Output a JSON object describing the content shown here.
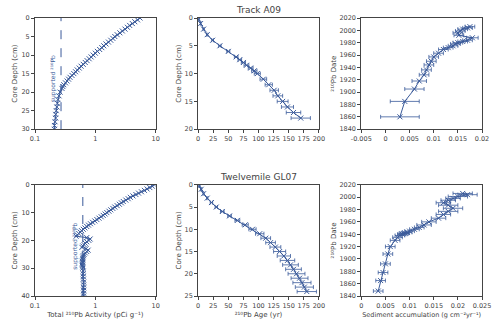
{
  "chart_data": [
    {
      "type": "line",
      "log": "x",
      "grid": false,
      "color": "#3a5a9a",
      "marker": "x",
      "line_style": "solid",
      "x": [
        5.5,
        5.0,
        4.5,
        4.1,
        3.7,
        3.4,
        3.1,
        2.8,
        2.55,
        2.3,
        2.1,
        1.95,
        1.8,
        1.65,
        1.5,
        1.38,
        1.28,
        1.18,
        1.08,
        1.0,
        0.92,
        0.85,
        0.79,
        0.73,
        0.68,
        0.63,
        0.58,
        0.54,
        0.5,
        0.47,
        0.44,
        0.41,
        0.38,
        0.36,
        0.34,
        0.32,
        0.3,
        0.29,
        0.28,
        0.26,
        0.25,
        0.24,
        0.235,
        0.23,
        0.225,
        0.22,
        0.22,
        0.215,
        0.21,
        0.21
      ],
      "y": [
        0,
        0.5,
        1.0,
        1.5,
        2.0,
        2.5,
        3.0,
        3.5,
        4.0,
        4.5,
        5.0,
        5.5,
        6.0,
        6.5,
        7.0,
        7.5,
        8.0,
        8.5,
        9.0,
        9.5,
        10.0,
        10.5,
        11.0,
        11.5,
        12.0,
        12.5,
        13.0,
        13.5,
        14.0,
        14.5,
        15.0,
        15.5,
        16.0,
        16.5,
        17.0,
        17.5,
        18.0,
        18.5,
        19.0,
        20.0,
        21.0,
        22.0,
        23.0,
        24.0,
        25.0,
        26.0,
        27.0,
        28.0,
        29.0,
        30.0
      ],
      "xlim": [
        0.1,
        10
      ],
      "ylim": [
        30,
        0
      ],
      "xticks": [
        0.1,
        1,
        10
      ],
      "yticks": [
        0,
        5,
        10,
        15,
        20,
        25,
        30
      ],
      "ylabel": "Core Depth (cm)",
      "supported": {
        "value": 0.27,
        "label": "supported ²¹⁰Pb",
        "line_style": "dashed"
      }
    },
    {
      "type": "line",
      "title": "Track A09",
      "grid": false,
      "color": "#3a5a9a",
      "marker": "x",
      "line_style": "solid",
      "x": [
        1,
        4,
        9,
        15,
        24,
        36,
        50,
        63,
        69,
        75,
        80,
        87,
        93,
        98,
        108,
        117,
        126,
        132,
        140,
        148,
        158,
        170
      ],
      "xerr": [
        0.5,
        0.5,
        1,
        1,
        1.5,
        2,
        2.5,
        3,
        3,
        3.5,
        4,
        4,
        4.5,
        5,
        5.5,
        6,
        7,
        8,
        9,
        10,
        12,
        16
      ],
      "y": [
        0.25,
        1.0,
        2.0,
        3.0,
        4.0,
        5.0,
        6.0,
        7.0,
        7.5,
        8.0,
        8.5,
        9.0,
        9.5,
        10.0,
        11.0,
        12.0,
        13.0,
        14.0,
        15.0,
        16.0,
        17.0,
        18.0
      ],
      "xlim": [
        0,
        200
      ],
      "ylim": [
        20,
        0
      ],
      "xticks": [
        0,
        25,
        50,
        75,
        100,
        125,
        150,
        175,
        200
      ],
      "yticks": [
        0,
        5,
        10,
        15,
        20
      ],
      "ylabel": "Core Depth (cm)"
    },
    {
      "type": "line",
      "grid": false,
      "color": "#3a5a9a",
      "marker": "x",
      "line_style": "solid",
      "x": [
        0.0175,
        0.017,
        0.016,
        0.0155,
        0.015,
        0.0152,
        0.018,
        0.017,
        0.016,
        0.015,
        0.0145,
        0.014,
        0.013,
        0.012,
        0.011,
        0.01,
        0.0095,
        0.009,
        0.0085,
        0.008,
        0.007,
        0.006,
        0.004,
        0.003
      ],
      "xerr": [
        0.001,
        0.001,
        0.001,
        0.001,
        0.001,
        0.001,
        0.0012,
        0.001,
        0.001,
        0.001,
        0.001,
        0.001,
        0.001,
        0.001,
        0.001,
        0.001,
        0.001,
        0.001,
        0.001,
        0.001,
        0.0015,
        0.002,
        0.003,
        0.004
      ],
      "y": [
        2006,
        2004,
        2002,
        1999,
        1996,
        1992,
        1988,
        1984,
        1982,
        1980,
        1978,
        1975,
        1972,
        1969,
        1963,
        1957,
        1950,
        1944,
        1936,
        1928,
        1918,
        1905,
        1885,
        1860
      ],
      "xlim": [
        -0.005,
        0.02
      ],
      "ylim": [
        1840,
        2020
      ],
      "xticks": [
        -0.005,
        0,
        0.005,
        0.01,
        0.015,
        0.02
      ],
      "yticks": [
        1840,
        1860,
        1880,
        1900,
        1920,
        1940,
        1960,
        1980,
        2000,
        2020
      ],
      "ylabel": "²¹⁰Pb Date"
    },
    {
      "type": "line",
      "log": "x",
      "grid": false,
      "color": "#3a5a9a",
      "marker": "x",
      "line_style": "solid",
      "x": [
        9.5,
        8.8,
        8.0,
        7.2,
        6.5,
        5.8,
        5.2,
        4.7,
        4.2,
        3.8,
        3.5,
        3.2,
        2.9,
        2.7,
        2.5,
        2.3,
        2.1,
        1.95,
        1.8,
        1.68,
        1.55,
        1.45,
        1.35,
        1.25,
        1.15,
        1.06,
        0.98,
        0.9,
        0.83,
        0.77,
        0.72,
        0.67,
        0.63,
        0.59,
        0.56,
        0.53,
        0.5,
        0.48,
        0.72,
        0.82,
        0.78,
        0.72,
        0.68,
        0.65,
        0.62,
        0.6,
        0.7,
        0.76,
        0.72,
        0.68,
        0.65,
        0.63,
        0.62,
        0.62,
        0.62,
        0.61,
        0.61,
        0.61,
        0.61,
        0.62,
        0.62,
        0.63,
        0.63,
        0.63,
        0.63,
        0.64,
        0.64,
        0.64,
        0.64,
        0.64,
        0.64
      ],
      "y": [
        0,
        0.5,
        1.0,
        1.5,
        2.0,
        2.5,
        3.0,
        3.5,
        4.0,
        4.5,
        5.0,
        5.5,
        6.0,
        6.5,
        7.0,
        7.5,
        8.0,
        8.5,
        9.0,
        9.5,
        10.0,
        10.5,
        11.0,
        11.5,
        12.0,
        12.5,
        13.0,
        13.5,
        14.0,
        14.5,
        15.0,
        15.5,
        16.0,
        16.5,
        17.0,
        17.5,
        18.0,
        18.5,
        19.0,
        19.5,
        20.0,
        20.5,
        21.0,
        21.5,
        22.0,
        22.5,
        23.0,
        23.5,
        24.0,
        24.5,
        25.0,
        25.5,
        26.0,
        26.5,
        27.0,
        27.5,
        28.0,
        28.5,
        29.0,
        29.5,
        30.0,
        31.0,
        32.0,
        33.0,
        34.0,
        35.0,
        36.0,
        37.0,
        38.0,
        39.0,
        40.0
      ],
      "xlim": [
        0.1,
        10
      ],
      "ylim": [
        40,
        0
      ],
      "xticks": [
        0.1,
        1,
        10
      ],
      "yticks": [
        0,
        10,
        20,
        30,
        40
      ],
      "xlabel": "Total ²¹⁰Pb Activity (pCi g⁻¹)",
      "ylabel": "Core Depth (cm)",
      "supported": {
        "value": 0.62,
        "label": "supported ²¹⁰Pb",
        "line_style": "dashed"
      }
    },
    {
      "type": "line",
      "title": "Twelvemile GL07",
      "grid": false,
      "color": "#3a5a9a",
      "marker": "x",
      "line_style": "solid",
      "x": [
        2,
        5,
        9,
        15,
        22,
        30,
        40,
        52,
        65,
        78,
        90,
        102,
        112,
        120,
        128,
        135,
        142,
        148,
        153,
        158,
        163,
        168,
        172,
        176,
        180
      ],
      "xerr": [
        1,
        1,
        1,
        1,
        2,
        2,
        3,
        3,
        4,
        5,
        6,
        7,
        8,
        8,
        9,
        10,
        11,
        12,
        13,
        13,
        14,
        14,
        15,
        15,
        16
      ],
      "y": [
        0.25,
        1.0,
        2.0,
        3.0,
        4.0,
        5.0,
        6.0,
        7.0,
        8.0,
        9.0,
        10.0,
        11.0,
        12.0,
        13.0,
        14.0,
        15.0,
        16.0,
        17.0,
        18.0,
        19.0,
        20.0,
        21.0,
        22.0,
        23.0,
        24.0
      ],
      "xlim": [
        0,
        200
      ],
      "ylim": [
        25,
        0
      ],
      "xticks": [
        0,
        25,
        50,
        75,
        100,
        125,
        150,
        175,
        200
      ],
      "yticks": [
        0,
        5,
        10,
        15,
        20,
        25
      ],
      "xlabel": "²¹⁰Pb Age (yr)",
      "ylabel": "Core Depth (cm)"
    },
    {
      "type": "line",
      "grid": false,
      "color": "#3a5a9a",
      "marker": "x",
      "line_style": "solid",
      "x": [
        0.021,
        0.022,
        0.02,
        0.019,
        0.018,
        0.017,
        0.018,
        0.019,
        0.018,
        0.017,
        0.016,
        0.014,
        0.013,
        0.012,
        0.011,
        0.01,
        0.0095,
        0.009,
        0.0088,
        0.0085,
        0.008,
        0.0075,
        0.007,
        0.006,
        0.0055,
        0.005,
        0.0045,
        0.004,
        0.0035
      ],
      "xerr": [
        0.002,
        0.002,
        0.002,
        0.0015,
        0.0015,
        0.0015,
        0.002,
        0.002,
        0.002,
        0.0015,
        0.0015,
        0.0015,
        0.0015,
        0.001,
        0.001,
        0.001,
        0.001,
        0.001,
        0.001,
        0.001,
        0.001,
        0.001,
        0.001,
        0.001,
        0.001,
        0.001,
        0.001,
        0.001,
        0.001
      ],
      "y": [
        2006,
        2004,
        2001,
        1998,
        1995,
        1991,
        1987,
        1982,
        1977,
        1972,
        1966,
        1960,
        1955,
        1951,
        1948,
        1945,
        1943,
        1942,
        1941,
        1940,
        1938,
        1935,
        1930,
        1920,
        1908,
        1892,
        1878,
        1865,
        1848
      ],
      "xlim": [
        0,
        0.025
      ],
      "ylim": [
        1840,
        2020
      ],
      "xticks": [
        0,
        0.005,
        0.01,
        0.015,
        0.02,
        0.025
      ],
      "yticks": [
        1840,
        1860,
        1880,
        1900,
        1920,
        1940,
        1960,
        1980,
        2000,
        2020
      ],
      "xlabel": "Sediment accumulation (g cm⁻²yr⁻¹)",
      "ylabel": "²¹⁰Pb Date"
    }
  ]
}
